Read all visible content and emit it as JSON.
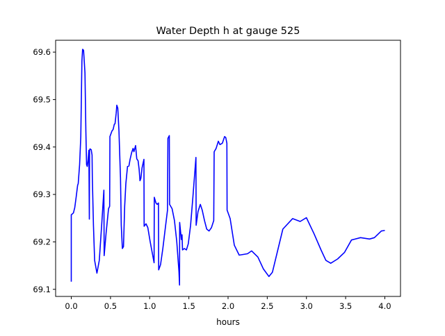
{
  "chart_data": {
    "type": "line",
    "title": "Water Depth h at gauge 525",
    "xlabel": "hours",
    "ylabel": "",
    "xlim": [
      -0.2,
      4.2
    ],
    "ylim": [
      69.085,
      69.625
    ],
    "xticks": [
      0.0,
      0.5,
      1.0,
      1.5,
      2.0,
      2.5,
      3.0,
      3.5,
      4.0
    ],
    "xtick_labels": [
      "0.0",
      "0.5",
      "1.0",
      "1.5",
      "2.0",
      "2.5",
      "3.0",
      "3.5",
      "4.0"
    ],
    "yticks": [
      69.1,
      69.2,
      69.3,
      69.4,
      69.5,
      69.6
    ],
    "ytick_labels": [
      "69.1",
      "69.2",
      "69.3",
      "69.4",
      "69.5",
      "69.6"
    ],
    "grid": false,
    "series": [
      {
        "name": "h",
        "color": "#0000ff",
        "x": [
          0.0,
          0.0,
          0.027,
          0.044,
          0.062,
          0.08,
          0.088,
          0.106,
          0.121,
          0.135,
          0.144,
          0.157,
          0.174,
          0.186,
          0.195,
          0.204,
          0.215,
          0.224,
          0.23,
          0.233,
          0.239,
          0.254,
          0.265,
          0.268,
          0.283,
          0.298,
          0.327,
          0.357,
          0.387,
          0.416,
          0.419,
          0.445,
          0.475,
          0.489,
          0.493,
          0.519,
          0.534,
          0.549,
          0.558,
          0.573,
          0.581,
          0.593,
          0.608,
          0.628,
          0.637,
          0.652,
          0.666,
          0.681,
          0.696,
          0.717,
          0.735,
          0.75,
          0.77,
          0.788,
          0.799,
          0.82,
          0.835,
          0.852,
          0.865,
          0.876,
          0.888,
          0.903,
          0.927,
          0.929,
          0.953,
          0.976,
          1.006,
          1.035,
          1.056,
          1.059,
          1.08,
          1.095,
          1.112,
          1.115,
          1.139,
          1.168,
          1.197,
          1.227,
          1.233,
          1.25,
          1.254,
          1.286,
          1.316,
          1.345,
          1.374,
          1.381,
          1.383,
          1.404,
          1.413,
          1.419,
          1.442,
          1.469,
          1.493,
          1.522,
          1.551,
          1.59,
          1.593,
          1.617,
          1.646,
          1.67,
          1.699,
          1.728,
          1.758,
          1.788,
          1.817,
          1.823,
          1.847,
          1.876,
          1.896,
          1.927,
          1.956,
          1.971,
          1.985,
          1.988,
          2.027,
          2.08,
          2.142,
          2.248,
          2.301,
          2.381,
          2.451,
          2.522,
          2.566,
          2.699,
          2.823,
          2.92,
          3.0,
          3.097,
          3.186,
          3.248,
          3.31,
          3.398,
          3.487,
          3.575,
          3.69,
          3.805,
          3.867,
          3.956,
          4.0
        ],
        "y": [
          69.116,
          69.257,
          69.261,
          69.272,
          69.294,
          69.319,
          69.323,
          69.363,
          69.422,
          69.581,
          69.606,
          69.604,
          69.556,
          69.433,
          69.363,
          69.359,
          69.374,
          69.393,
          69.248,
          69.393,
          69.396,
          69.394,
          69.383,
          69.334,
          69.235,
          69.161,
          69.134,
          69.161,
          69.235,
          69.309,
          69.171,
          69.22,
          69.27,
          69.275,
          69.422,
          69.434,
          69.437,
          69.448,
          69.449,
          69.471,
          69.488,
          69.482,
          69.433,
          69.334,
          69.235,
          69.186,
          69.19,
          69.275,
          69.323,
          69.359,
          69.36,
          69.374,
          69.388,
          69.397,
          69.39,
          69.403,
          69.375,
          69.371,
          69.353,
          69.329,
          69.334,
          69.356,
          69.374,
          69.233,
          69.238,
          69.23,
          69.201,
          69.175,
          69.156,
          69.294,
          69.282,
          69.279,
          69.282,
          69.141,
          69.152,
          69.186,
          69.226,
          69.267,
          69.418,
          69.424,
          69.279,
          69.27,
          69.245,
          69.201,
          69.137,
          69.109,
          69.241,
          69.205,
          69.215,
          69.183,
          69.186,
          69.183,
          69.196,
          69.235,
          69.294,
          69.378,
          69.235,
          69.264,
          69.279,
          69.267,
          69.245,
          69.227,
          69.223,
          69.23,
          69.245,
          69.39,
          69.397,
          69.412,
          69.405,
          69.408,
          69.422,
          69.42,
          69.408,
          69.267,
          69.249,
          69.193,
          69.172,
          69.175,
          69.181,
          69.168,
          69.143,
          69.127,
          69.136,
          69.227,
          69.249,
          69.243,
          69.251,
          69.217,
          69.183,
          69.161,
          69.155,
          69.164,
          69.178,
          69.204,
          69.209,
          69.206,
          69.209,
          69.223,
          69.224
        ]
      }
    ]
  }
}
